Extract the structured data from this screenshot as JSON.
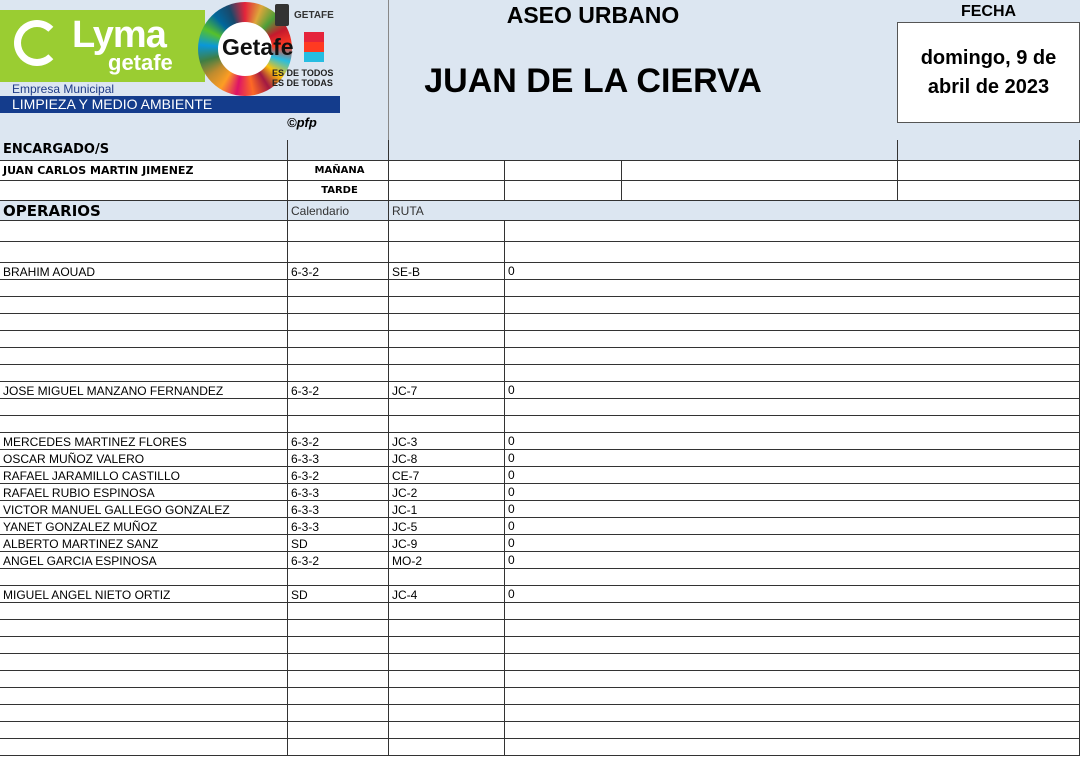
{
  "header": {
    "logo_text": "Lyma",
    "logo_sub": "getafe",
    "getafe_logo": "Getafe",
    "ayuntamiento": "GETAFE",
    "slogan1": "ES DE TODOS",
    "slogan2": "ES DE TODAS",
    "empresa": "Empresa Municipal",
    "limpieza": "LIMPIEZA Y MEDIO AMBIENTE",
    "copyright": "©pfp",
    "title": "ASEO URBANO",
    "subtitle": "JUAN DE LA CIERVA",
    "fecha_label": "FECHA",
    "fecha": "domingo, 9 de abril de 2023"
  },
  "encargados": {
    "label": "ENCARGADO/S",
    "name": "JUAN CARLOS MARTIN JIMENEZ",
    "manana": "MAÑANA",
    "tarde": "TARDE"
  },
  "operarios": {
    "label": "OPERARIOS",
    "col_calendario": "Calendario",
    "col_ruta": "RUTA",
    "rows": [
      {
        "name": "",
        "cal": "",
        "ruta": "",
        "val": "",
        "h": 21
      },
      {
        "name": "",
        "cal": "",
        "ruta": "",
        "val": "",
        "h": 21
      },
      {
        "name": "BRAHIM AOUAD",
        "cal": "6-3-2",
        "ruta": "SE-B",
        "val": "0"
      },
      {
        "name": "",
        "cal": "",
        "ruta": "",
        "val": ""
      },
      {
        "name": "",
        "cal": "",
        "ruta": "",
        "val": ""
      },
      {
        "name": "",
        "cal": "",
        "ruta": "",
        "val": ""
      },
      {
        "name": "",
        "cal": "",
        "ruta": "",
        "val": ""
      },
      {
        "name": "",
        "cal": "",
        "ruta": "",
        "val": ""
      },
      {
        "name": "",
        "cal": "",
        "ruta": "",
        "val": ""
      },
      {
        "name": "JOSE MIGUEL MANZANO FERNANDEZ",
        "cal": "6-3-2",
        "ruta": "JC-7",
        "val": "0"
      },
      {
        "name": "",
        "cal": "",
        "ruta": "",
        "val": ""
      },
      {
        "name": "",
        "cal": "",
        "ruta": "",
        "val": ""
      },
      {
        "name": "MERCEDES MARTINEZ FLORES",
        "cal": "6-3-2",
        "ruta": "JC-3",
        "val": "0"
      },
      {
        "name": "OSCAR MUÑOZ VALERO",
        "cal": "6-3-3",
        "ruta": "JC-8",
        "val": "0"
      },
      {
        "name": "RAFAEL JARAMILLO CASTILLO",
        "cal": "6-3-2",
        "ruta": "CE-7",
        "val": "0"
      },
      {
        "name": "RAFAEL RUBIO ESPINOSA",
        "cal": "6-3-3",
        "ruta": "JC-2",
        "val": "0"
      },
      {
        "name": "VICTOR MANUEL GALLEGO GONZALEZ",
        "cal": "6-3-3",
        "ruta": "JC-1",
        "val": "0"
      },
      {
        "name": "YANET GONZALEZ MUÑOZ",
        "cal": "6-3-3",
        "ruta": "JC-5",
        "val": "0"
      },
      {
        "name": "ALBERTO MARTINEZ SANZ",
        "cal": "SD",
        "ruta": "JC-9",
        "val": "0"
      },
      {
        "name": "ANGEL GARCIA ESPINOSA",
        "cal": "6-3-2",
        "ruta": "MO-2",
        "val": "0"
      },
      {
        "name": "",
        "cal": "",
        "ruta": "",
        "val": ""
      },
      {
        "name": "MIGUEL ANGEL NIETO ORTIZ",
        "cal": "SD",
        "ruta": "JC-4",
        "val": "0"
      },
      {
        "name": "",
        "cal": "",
        "ruta": "",
        "val": ""
      },
      {
        "name": "",
        "cal": "",
        "ruta": "",
        "val": ""
      },
      {
        "name": "",
        "cal": "",
        "ruta": "",
        "val": ""
      },
      {
        "name": "",
        "cal": "",
        "ruta": "",
        "val": ""
      },
      {
        "name": "",
        "cal": "",
        "ruta": "",
        "val": ""
      },
      {
        "name": "",
        "cal": "",
        "ruta": "",
        "val": ""
      },
      {
        "name": "",
        "cal": "",
        "ruta": "",
        "val": ""
      },
      {
        "name": "",
        "cal": "",
        "ruta": "",
        "val": ""
      },
      {
        "name": "",
        "cal": "",
        "ruta": "",
        "val": ""
      }
    ]
  },
  "colors": {
    "header_bg": "#dce6f1",
    "brand_green": "#9acd32",
    "brand_blue": "#143c8c"
  }
}
